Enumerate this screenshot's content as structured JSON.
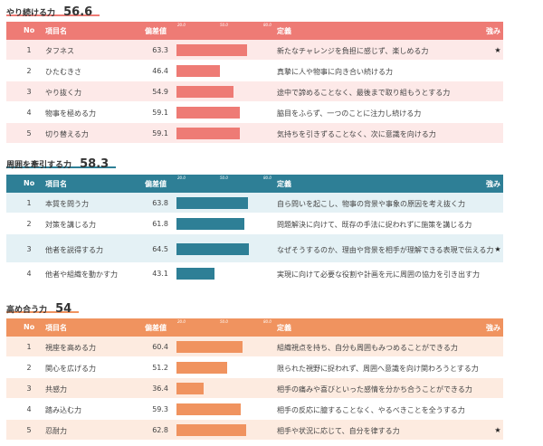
{
  "headers": {
    "no": "No",
    "name": "項目名",
    "value": "偏差値",
    "def": "定義",
    "strength": "強み",
    "ticks": [
      "20.0",
      "50.0",
      "80.0"
    ]
  },
  "colors": {
    "s1_head": "#ee7b75",
    "s1_bar": "#ee7b75",
    "s1_row_a": "#fde9e8",
    "s1_row_b": "#ffffff",
    "s2_head": "#2e7f96",
    "s2_bar": "#2e7f96",
    "s2_row_a": "#e4f1f5",
    "s2_row_b": "#ffffff",
    "s3_head": "#f0935f",
    "s3_bar": "#f0935f",
    "s3_row_a": "#fdebe0",
    "s3_row_b": "#ffffff"
  },
  "sections": [
    {
      "title": "やり続ける力",
      "score": "56.6",
      "rows": [
        {
          "no": "1",
          "name": "タフネス",
          "value": "63.3",
          "num": 63.3,
          "def": "新たなチャレンジを負担に感じず、楽しめる力",
          "star": "★"
        },
        {
          "no": "2",
          "name": "ひたむきさ",
          "value": "46.4",
          "num": 46.4,
          "def": "真摯に人や物事に向き合い続ける力",
          "star": ""
        },
        {
          "no": "3",
          "name": "やり抜く力",
          "value": "54.9",
          "num": 54.9,
          "def": "途中で諦めることなく、最後まで取り組もうとする力",
          "star": ""
        },
        {
          "no": "4",
          "name": "物事を極める力",
          "value": "59.1",
          "num": 59.1,
          "def": "脇目をふらず、一つのことに注力し続ける力",
          "star": ""
        },
        {
          "no": "5",
          "name": "切り替える力",
          "value": "59.1",
          "num": 59.1,
          "def": "気持ちを引きずることなく、次に意識を向ける力",
          "star": ""
        }
      ]
    },
    {
      "title": "周囲を牽引する力",
      "score": "58.3",
      "rows": [
        {
          "no": "1",
          "name": "本質を問う力",
          "value": "63.8",
          "num": 63.8,
          "def": "自ら問いを起こし、物事の背景や事象の原因を考え抜く力",
          "star": ""
        },
        {
          "no": "2",
          "name": "対策を講じる力",
          "value": "61.8",
          "num": 61.8,
          "def": "問題解決に向けて、既存の手法に捉われずに施策を講じる力",
          "star": ""
        },
        {
          "no": "3",
          "name": "他者を説得する力",
          "value": "64.5",
          "num": 64.5,
          "def": "なぜそうするのか、理由や背景を相手が理解できる表現で伝える力",
          "star": "★"
        },
        {
          "no": "4",
          "name": "他者や組織を動かす力",
          "value": "43.1",
          "num": 43.1,
          "def": "実現に向けて必要な役割や計画を元に周囲の協力を引き出す力",
          "star": ""
        }
      ]
    },
    {
      "title": "高め合う力",
      "score": "54",
      "rows": [
        {
          "no": "1",
          "name": "視座を高める力",
          "value": "60.4",
          "num": 60.4,
          "def": "組織視点を持ち、自分も周囲もみつめることができる力",
          "star": ""
        },
        {
          "no": "2",
          "name": "関心を広げる力",
          "value": "51.2",
          "num": 51.2,
          "def": "限られた視野に捉われず、周囲へ意識を向け関わろうとする力",
          "star": ""
        },
        {
          "no": "3",
          "name": "共感力",
          "value": "36.4",
          "num": 36.4,
          "def": "相手の痛みや喜びといった感情を分かち合うことができる力",
          "star": ""
        },
        {
          "no": "4",
          "name": "踏み込む力",
          "value": "59.3",
          "num": 59.3,
          "def": "相手の反応に臆することなく、やるべきことを全うする力",
          "star": ""
        },
        {
          "no": "5",
          "name": "忍耐力",
          "value": "62.8",
          "num": 62.8,
          "def": "相手や状況に応じて、自分を律する力",
          "star": "★"
        }
      ]
    }
  ]
}
